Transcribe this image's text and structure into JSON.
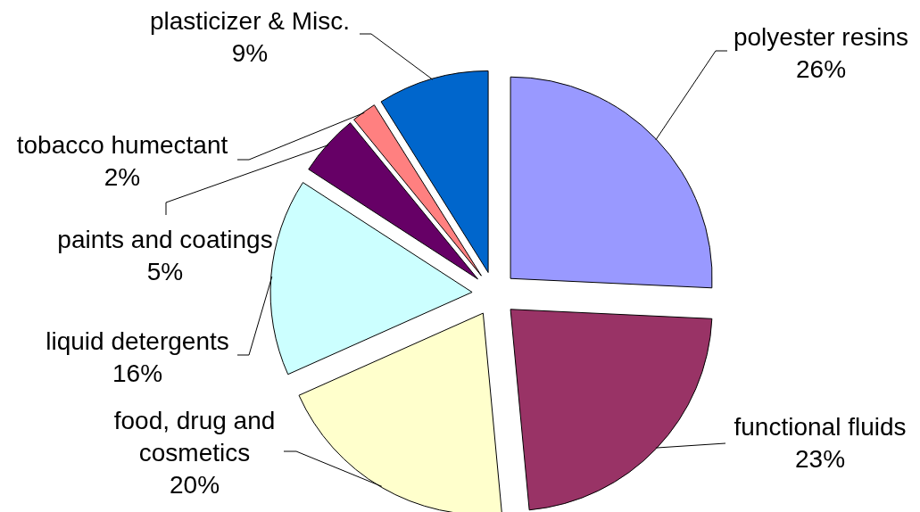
{
  "chart_data": {
    "type": "pie",
    "categories": [
      "polyester resins",
      "functional fluids",
      "food, drug and cosmetics",
      "liquid detergents",
      "paints and coatings",
      "tobacco humectant",
      "plasticizer & Misc."
    ],
    "values": [
      26,
      23,
      20,
      16,
      5,
      2,
      9
    ],
    "value_labels": [
      "26%",
      "23%",
      "20%",
      "16%",
      "5%",
      "2%",
      "9%"
    ],
    "colors": [
      "#9999ff",
      "#993366",
      "#ffffcc",
      "#ccffff",
      "#660066",
      "#ff8080",
      "#0066cc"
    ]
  }
}
